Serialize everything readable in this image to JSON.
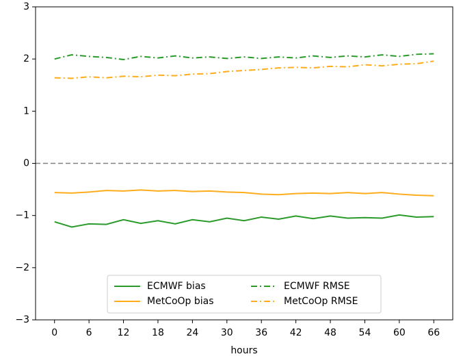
{
  "chart_data": {
    "type": "line",
    "x_label": "hours",
    "x": [
      0,
      3,
      6,
      9,
      12,
      15,
      18,
      21,
      24,
      27,
      30,
      33,
      36,
      39,
      42,
      45,
      48,
      51,
      54,
      57,
      60,
      63,
      66
    ],
    "series": [
      {
        "name": "ECMWF bias",
        "color": "#2a9a2a",
        "linestyle": "solid",
        "values": [
          -1.12,
          -1.22,
          -1.16,
          -1.17,
          -1.08,
          -1.15,
          -1.1,
          -1.16,
          -1.08,
          -1.12,
          -1.05,
          -1.1,
          -1.03,
          -1.07,
          -1.01,
          -1.06,
          -1.01,
          -1.05,
          -1.04,
          -1.05,
          -0.99,
          -1.03,
          -1.02
        ]
      },
      {
        "name": "MetCoOp bias",
        "color": "#ffac1c",
        "linestyle": "solid",
        "values": [
          -0.56,
          -0.57,
          -0.55,
          -0.52,
          -0.53,
          -0.51,
          -0.53,
          -0.52,
          -0.54,
          -0.53,
          -0.55,
          -0.56,
          -0.59,
          -0.6,
          -0.58,
          -0.57,
          -0.58,
          -0.56,
          -0.58,
          -0.56,
          -0.59,
          -0.61,
          -0.62
        ]
      },
      {
        "name": "ECMWF RMSE",
        "color": "#2a9a2a",
        "linestyle": "dashdot",
        "values": [
          2.0,
          2.08,
          2.05,
          2.03,
          1.99,
          2.05,
          2.02,
          2.06,
          2.02,
          2.04,
          2.01,
          2.04,
          2.01,
          2.04,
          2.02,
          2.06,
          2.03,
          2.06,
          2.04,
          2.08,
          2.05,
          2.09,
          2.1
        ]
      },
      {
        "name": "MetCoOp RMSE",
        "color": "#ffac1c",
        "linestyle": "dashdot",
        "values": [
          1.64,
          1.63,
          1.66,
          1.64,
          1.67,
          1.66,
          1.69,
          1.68,
          1.71,
          1.72,
          1.76,
          1.78,
          1.8,
          1.83,
          1.84,
          1.83,
          1.86,
          1.85,
          1.89,
          1.87,
          1.9,
          1.91,
          1.96
        ]
      }
    ],
    "xlim": [
      -3.3,
      69.3
    ],
    "xticks": [
      0,
      6,
      12,
      18,
      24,
      30,
      36,
      42,
      48,
      54,
      60,
      66
    ],
    "ylim": [
      -3,
      3
    ],
    "yticks": [
      {
        "value": -3,
        "label": "−3"
      },
      {
        "value": -2,
        "label": "−2"
      },
      {
        "value": -1,
        "label": "−1"
      },
      0,
      1,
      2,
      3
    ],
    "hline": 0,
    "legend": "lower center"
  }
}
